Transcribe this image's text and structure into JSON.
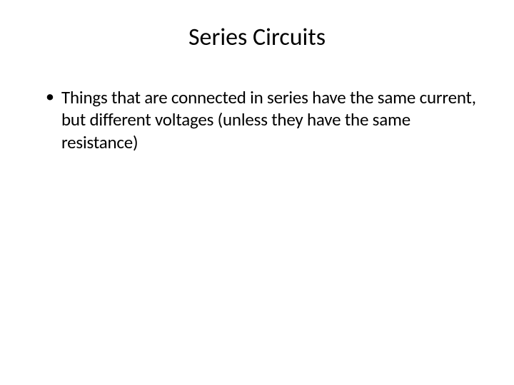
{
  "slide": {
    "title": "Series Circuits",
    "bullets": [
      "Things that are connected in series have the same current, but different voltages (unless they have the same resistance)"
    ]
  }
}
